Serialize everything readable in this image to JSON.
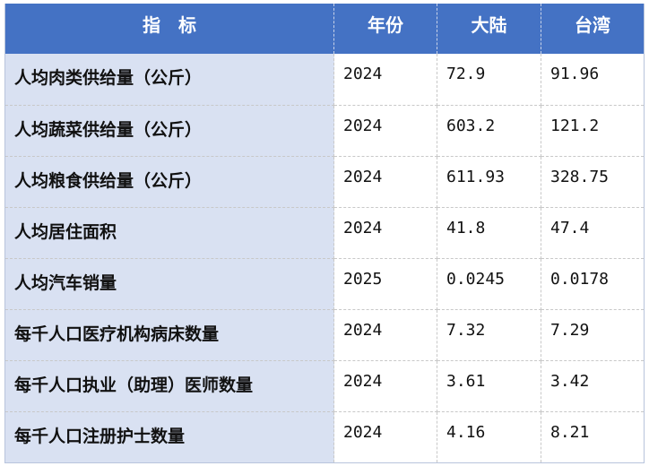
{
  "header": {
    "indicator": "指　标",
    "year": "年份",
    "mainland": "大陆",
    "taiwan": "台湾"
  },
  "colors": {
    "header_bg": "#4472c4",
    "indicator_bg": "#d9e1f2"
  },
  "rows": [
    {
      "indicator": "人均肉类供给量（公斤）",
      "year": "2024",
      "mainland": "72.9",
      "taiwan": "91.96"
    },
    {
      "indicator": "人均蔬菜供给量（公斤）",
      "year": "2024",
      "mainland": "603.2",
      "taiwan": "121.2"
    },
    {
      "indicator": "人均粮食供给量（公斤）",
      "year": "2024",
      "mainland": "611.93",
      "taiwan": "328.75"
    },
    {
      "indicator": "人均居住面积",
      "year": "2024",
      "mainland": "41.8",
      "taiwan": "47.4"
    },
    {
      "indicator": "人均汽车销量",
      "year": "2025",
      "mainland": "0.0245",
      "taiwan": "0.0178"
    },
    {
      "indicator": "每千人口医疗机构病床数量",
      "year": "2024",
      "mainland": "7.32",
      "taiwan": "7.29"
    },
    {
      "indicator": "每千人口执业（助理）医师数量",
      "year": "2024",
      "mainland": "3.61",
      "taiwan": "3.42"
    },
    {
      "indicator": "每千人口注册护士数量",
      "year": "2024",
      "mainland": "4.16",
      "taiwan": "8.21"
    }
  ]
}
